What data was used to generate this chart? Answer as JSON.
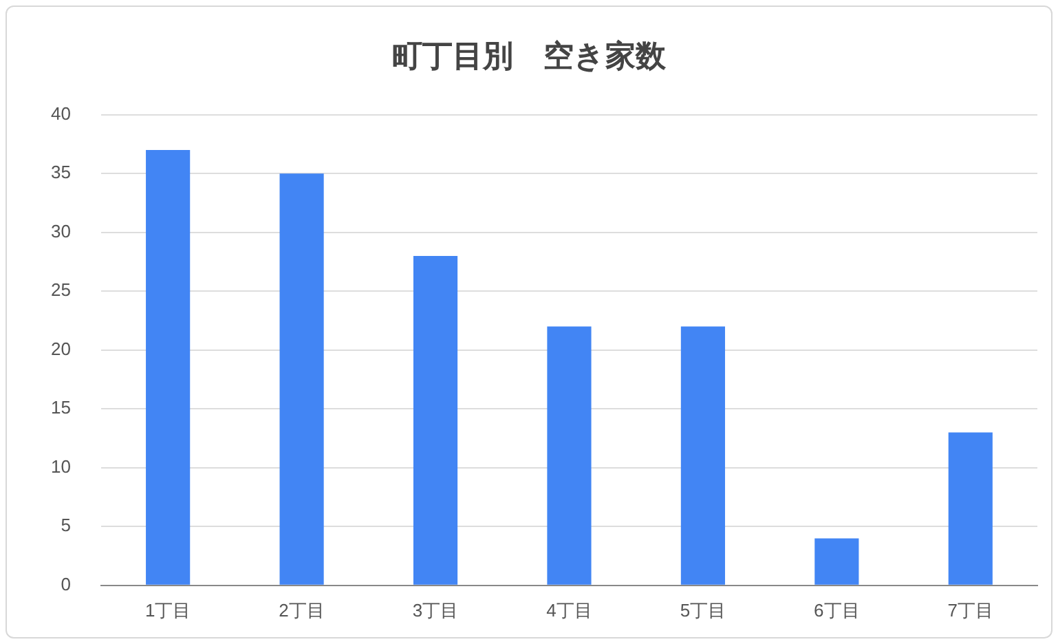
{
  "chart_data": {
    "type": "bar",
    "title": "町丁目別　空き家数",
    "categories": [
      "1丁目",
      "2丁目",
      "3丁目",
      "4丁目",
      "5丁目",
      "6丁目",
      "7丁目"
    ],
    "values": [
      37,
      35,
      28,
      22,
      22,
      4,
      13
    ],
    "color": "#4285f4",
    "ylim": [
      0,
      40
    ],
    "yticks": [
      0,
      5,
      10,
      15,
      20,
      25,
      30,
      35,
      40
    ],
    "grid": "y"
  }
}
